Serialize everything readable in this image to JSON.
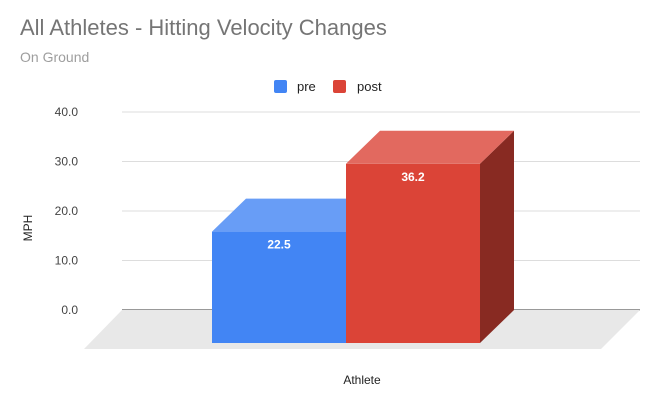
{
  "chart_data": {
    "type": "bar",
    "style": "3d",
    "title": "All Athletes - Hitting Velocity Changes",
    "subtitle": "On Ground",
    "xlabel": "Athlete",
    "ylabel": "MPH",
    "ylim": [
      0,
      40
    ],
    "yticks": [
      "0.0",
      "10.0",
      "20.0",
      "30.0",
      "40.0"
    ],
    "grid": true,
    "legend_position": "top",
    "categories": [
      ""
    ],
    "series": [
      {
        "name": "pre",
        "values": [
          22.5
        ],
        "label": "22.5",
        "color": "#4285f4"
      },
      {
        "name": "post",
        "values": [
          36.2
        ],
        "label": "36.2",
        "color": "#db4437"
      }
    ]
  }
}
